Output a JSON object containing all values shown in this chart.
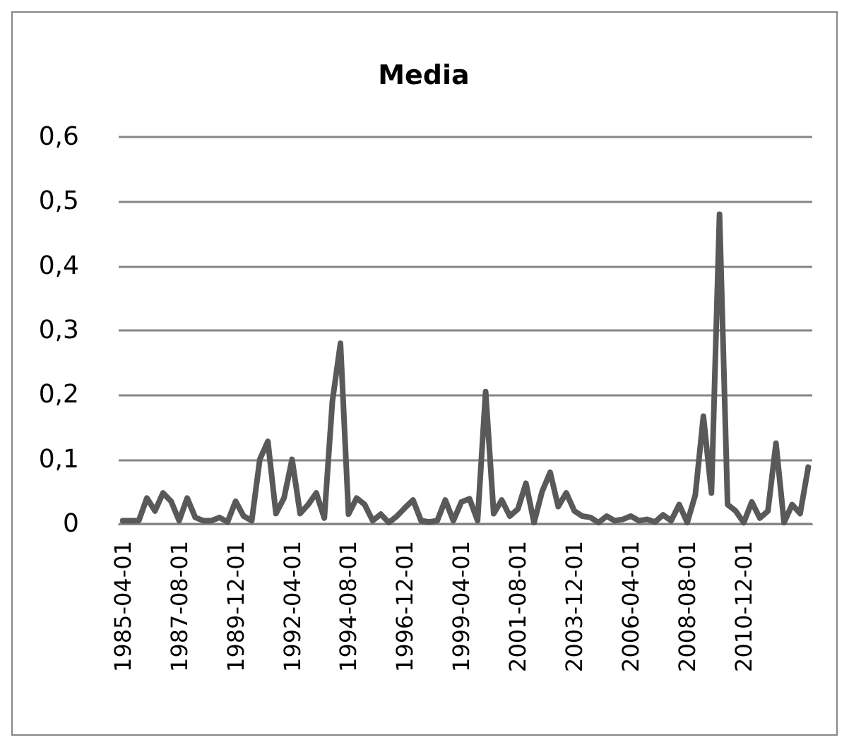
{
  "chart_data": {
    "type": "line",
    "title": "Media",
    "categories": [
      "1985-04-01",
      null,
      null,
      null,
      null,
      null,
      null,
      "1987-08-01",
      null,
      null,
      null,
      null,
      null,
      null,
      "1989-12-01",
      null,
      null,
      null,
      null,
      null,
      null,
      "1992-04-01",
      null,
      null,
      null,
      null,
      null,
      null,
      "1994-08-01",
      null,
      null,
      null,
      null,
      null,
      null,
      "1996-12-01",
      null,
      null,
      null,
      null,
      null,
      null,
      "1999-04-01",
      null,
      null,
      null,
      null,
      null,
      null,
      "2001-08-01",
      null,
      null,
      null,
      null,
      null,
      null,
      "2003-12-01",
      null,
      null,
      null,
      null,
      null,
      null,
      "2006-04-01",
      null,
      null,
      null,
      null,
      null,
      null,
      "2008-08-01",
      null,
      null,
      null,
      null,
      null,
      null,
      "2010-12-01",
      null,
      null,
      null,
      null,
      null,
      null,
      null,
      null
    ],
    "series": [
      {
        "color": "#595959",
        "values": [
          0.005,
          0.005,
          0.005,
          0.04,
          0.02,
          0.048,
          0.035,
          0.005,
          0.04,
          0.01,
          0.005,
          0.005,
          0.01,
          0.003,
          0.035,
          0.012,
          0.005,
          0.1,
          0.128,
          0.016,
          0.04,
          0.1,
          0.016,
          0.03,
          0.048,
          0.009,
          0.19,
          0.28,
          0.015,
          0.04,
          0.03,
          0.005,
          0.015,
          0.002,
          0.012,
          0.025,
          0.037,
          0.005,
          0.003,
          0.005,
          0.037,
          0.005,
          0.034,
          0.039,
          0.005,
          0.205,
          0.016,
          0.037,
          0.012,
          0.023,
          0.063,
          0.002,
          0.05,
          0.08,
          0.027,
          0.048,
          0.02,
          0.012,
          0.01,
          0.002,
          0.012,
          0.005,
          0.007,
          0.012,
          0.005,
          0.007,
          0.003,
          0.014,
          0.005,
          0.03,
          0.002,
          0.045,
          0.167,
          0.048,
          0.48,
          0.03,
          0.02,
          0.002,
          0.034,
          0.009,
          0.02,
          0.125,
          0.002,
          0.03,
          0.016,
          0.088
        ]
      }
    ],
    "ylim": [
      0,
      0.6
    ],
    "yticks": [
      {
        "value": 0,
        "label": "0"
      },
      {
        "value": 0.1,
        "label": "0,1"
      },
      {
        "value": 0.2,
        "label": "0,2"
      },
      {
        "value": 0.3,
        "label": "0,3"
      },
      {
        "value": 0.4,
        "label": "0,4"
      },
      {
        "value": 0.5,
        "label": "0,5"
      },
      {
        "value": 0.6,
        "label": "0,6"
      }
    ],
    "grid": "y",
    "marker": "none",
    "line_style": "solid"
  }
}
